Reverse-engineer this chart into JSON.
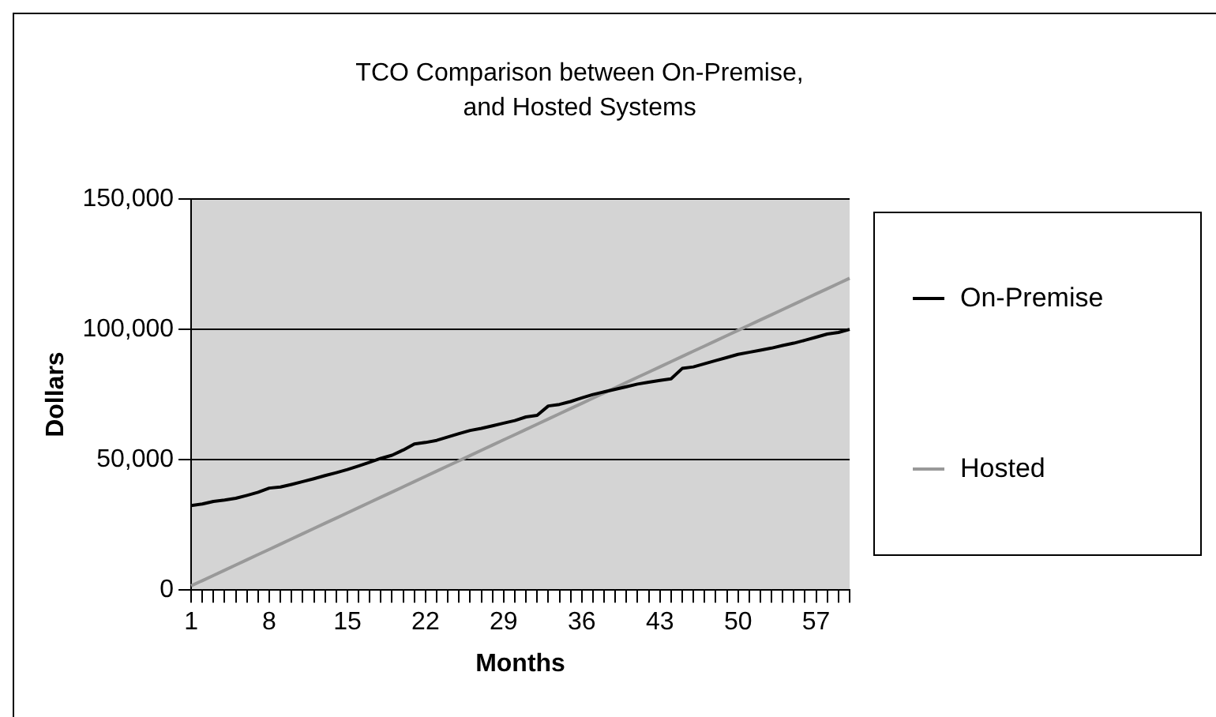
{
  "chart_data": {
    "type": "line",
    "title": "TCO Comparison between On-Premise, and Hosted Systems",
    "xlabel": "Months",
    "ylabel": "Dollars",
    "categories": [
      "1",
      null,
      null,
      null,
      null,
      null,
      null,
      "8",
      null,
      null,
      null,
      null,
      null,
      null,
      "15",
      null,
      null,
      null,
      null,
      null,
      null,
      "22",
      null,
      null,
      null,
      null,
      null,
      null,
      "29",
      null,
      null,
      null,
      null,
      null,
      null,
      "36",
      null,
      null,
      null,
      null,
      null,
      null,
      "43",
      null,
      null,
      null,
      null,
      null,
      null,
      "50",
      null,
      null,
      null,
      null,
      null,
      null,
      "57",
      null,
      null,
      null
    ],
    "series": [
      {
        "name": "On-Premise",
        "color": "#000000",
        "values": [
          32400,
          33000,
          34000,
          34500,
          35200,
          36300,
          37500,
          39100,
          39500,
          40500,
          41600,
          42700,
          43900,
          45000,
          46200,
          47600,
          49000,
          50500,
          51700,
          53700,
          56000,
          56600,
          57400,
          58700,
          60000,
          61200,
          62000,
          63000,
          64000,
          65000,
          66400,
          67000,
          70600,
          71200,
          72300,
          73700,
          75000,
          76000,
          77000,
          78000,
          79000,
          79700,
          80400,
          81000,
          85000,
          85600,
          86800,
          88000,
          89200,
          90400,
          91200,
          92000,
          92800,
          93800,
          94700,
          95800,
          97000,
          98200,
          98800,
          100000
        ]
      },
      {
        "name": "Hosted",
        "color": "#999999",
        "values": [
          1600,
          3600,
          5600,
          7600,
          9600,
          11600,
          13600,
          15600,
          17600,
          19600,
          21600,
          23600,
          25600,
          27600,
          29600,
          31600,
          33600,
          35600,
          37600,
          39600,
          41600,
          43600,
          45600,
          47600,
          49600,
          51600,
          53600,
          55600,
          57600,
          59600,
          61600,
          63600,
          65600,
          67600,
          69600,
          71600,
          73600,
          75600,
          77600,
          79600,
          81600,
          83600,
          85600,
          87600,
          89600,
          91600,
          93600,
          95600,
          97600,
          99600,
          101600,
          103600,
          105600,
          107600,
          109600,
          111600,
          113600,
          115600,
          117600,
          119600
        ]
      }
    ],
    "ylim": [
      0,
      150000
    ],
    "yticks": [
      {
        "value": 0,
        "label": "0"
      },
      {
        "value": 50000,
        "label": "50,000"
      },
      {
        "value": 100000,
        "label": "100,000"
      },
      {
        "value": 150000,
        "label": "150,000"
      }
    ],
    "grid": "y",
    "legend": "right",
    "marker": "none",
    "line_style": "solid"
  }
}
